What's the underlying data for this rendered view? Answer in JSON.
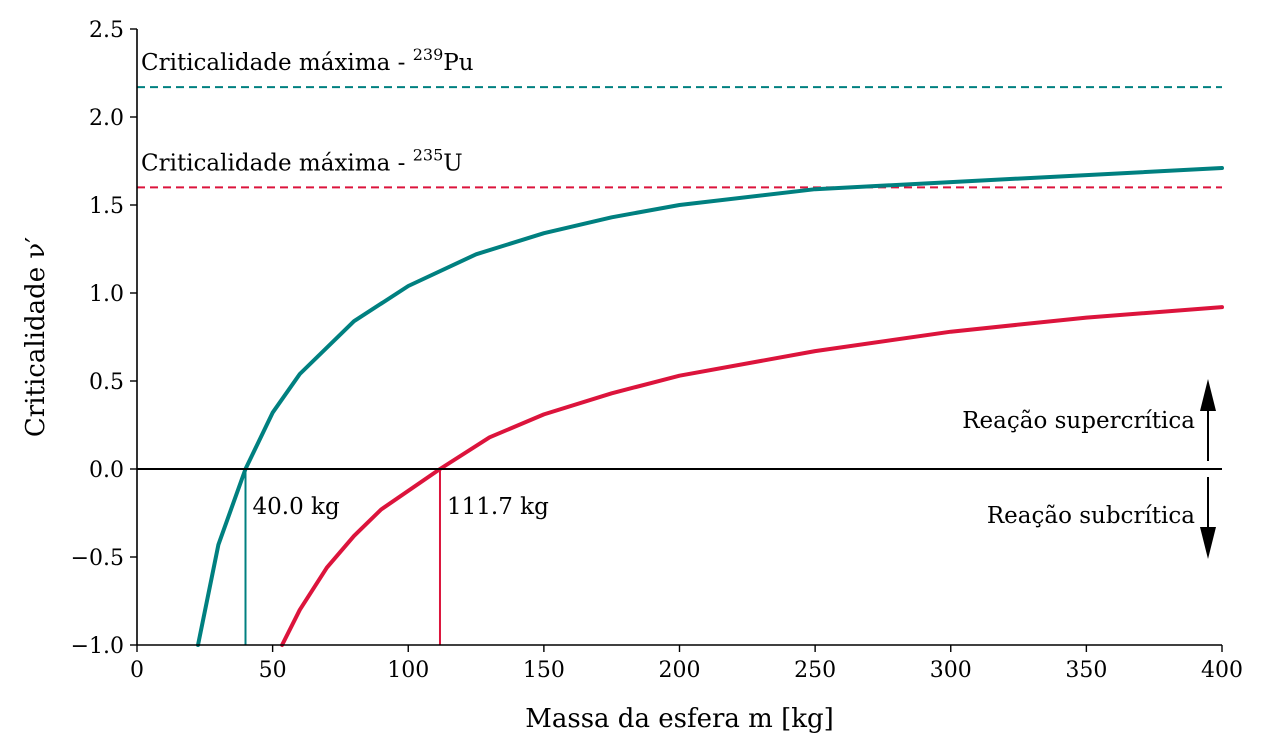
{
  "chart_data": {
    "type": "line",
    "title": "",
    "xlabel": "Massa da esfera m [kg]",
    "ylabel": "Criticalidade ν′",
    "xlim": [
      0,
      400
    ],
    "ylim": [
      -1.0,
      2.5
    ],
    "x_ticks": [
      0,
      50,
      100,
      150,
      200,
      250,
      300,
      350,
      400
    ],
    "x_tick_labels": [
      "0",
      "50",
      "100",
      "150",
      "200",
      "250",
      "300",
      "350",
      "400"
    ],
    "y_ticks": [
      -1.0,
      -0.5,
      0.0,
      0.5,
      1.0,
      1.5,
      2.0,
      2.5
    ],
    "y_tick_labels": [
      "−1.0",
      "−0.5",
      "0.0",
      "0.5",
      "1.0",
      "1.5",
      "2.0",
      "2.5"
    ],
    "grid": false,
    "series": [
      {
        "color": "#008080",
        "x": [
          22.5,
          30,
          40,
          50,
          60,
          80,
          100,
          125,
          150,
          175,
          200,
          250,
          300,
          350,
          400
        ],
        "y": [
          -1.0,
          -0.43,
          0.0,
          0.32,
          0.54,
          0.84,
          1.04,
          1.22,
          1.34,
          1.43,
          1.5,
          1.59,
          1.63,
          1.67,
          1.71
        ]
      },
      {
        "color": "#dc143c",
        "x": [
          53.5,
          60,
          70,
          80,
          90,
          111.7,
          130,
          150,
          175,
          200,
          250,
          300,
          350,
          400
        ],
        "y": [
          -1.0,
          -0.8,
          -0.56,
          -0.38,
          -0.23,
          0.0,
          0.18,
          0.31,
          0.43,
          0.53,
          0.67,
          0.78,
          0.86,
          0.92
        ]
      }
    ],
    "reference_lines": [
      {
        "label_prefix": "Criticalidade máxima - ",
        "isotope_mass": "239",
        "isotope_symbol": "Pu",
        "y": 2.17,
        "color": "#008080",
        "style": "dashed"
      },
      {
        "label_prefix": "Criticalidade máxima - ",
        "isotope_mass": "235",
        "isotope_symbol": "U",
        "y": 1.6,
        "color": "#dc143c",
        "style": "dashed"
      }
    ],
    "critical_masses": [
      {
        "x": 40.0,
        "label": "40.0 kg",
        "color": "#008080"
      },
      {
        "x": 111.7,
        "label": "111.7 kg",
        "color": "#dc143c"
      }
    ],
    "region_annotations": {
      "above": "Reação supercrítica",
      "below": "Reação subcrítica"
    }
  }
}
